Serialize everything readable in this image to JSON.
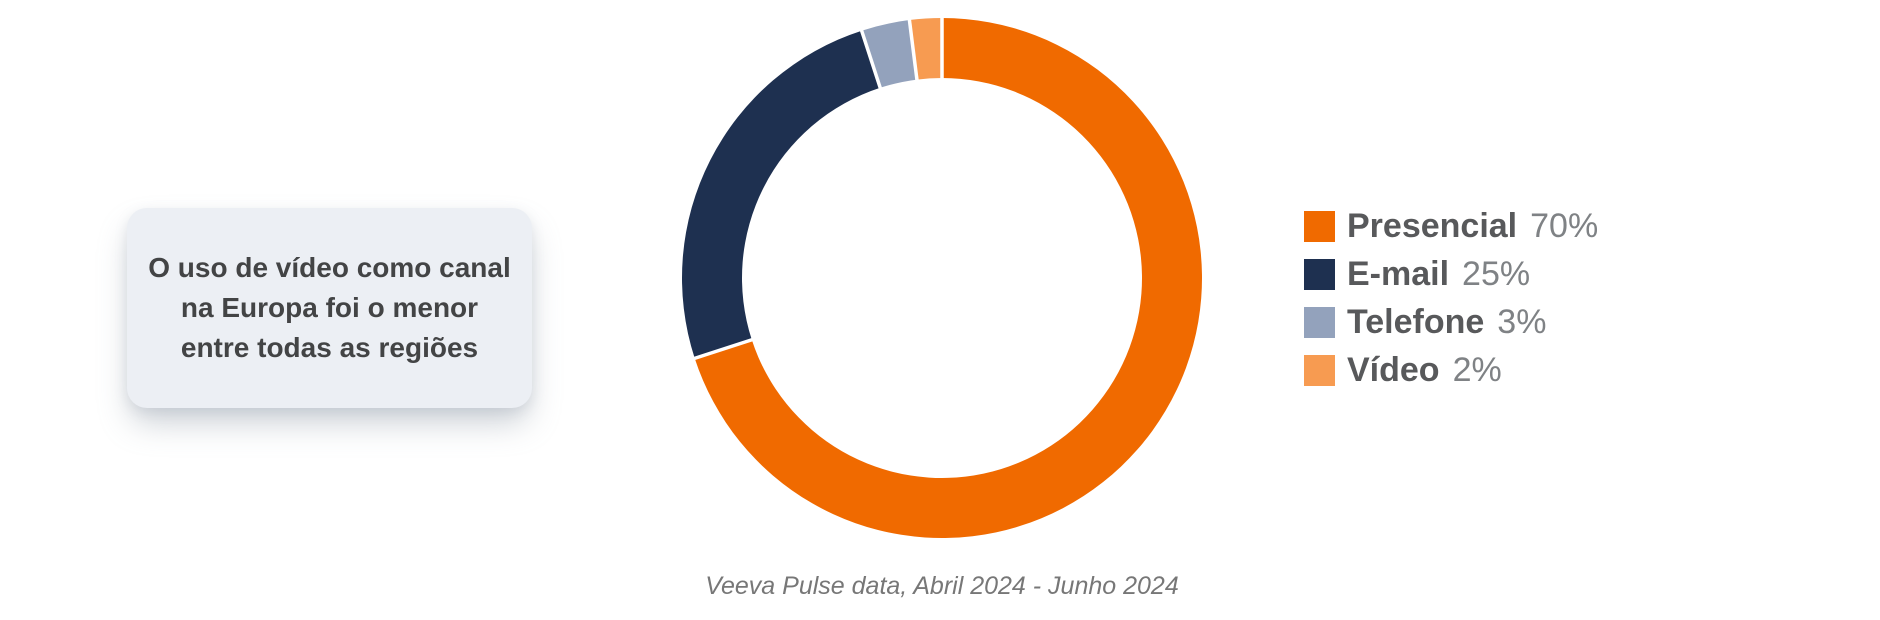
{
  "page": {
    "background": "#FFFFFF"
  },
  "callout": {
    "lines": [
      "O uso de vídeo como canal",
      "na Europa foi o menor",
      "entre todas as regiões"
    ],
    "background": "#ECEFF4",
    "text_color": "#434445"
  },
  "chart_data": {
    "type": "pie",
    "subtype": "donut",
    "direction": "clockwise",
    "start_angle_deg": 0,
    "inner_radius_ratio": 0.77,
    "slice_gap_color": "#FFFFFF",
    "legend_position": "right",
    "categories": [
      "Presencial",
      "E-mail",
      "Telefone",
      "Vídeo"
    ],
    "values": [
      70,
      25,
      3,
      2
    ],
    "slices": [
      {
        "label": "Presencial",
        "value": 70,
        "display_value": "70%",
        "color": "#F06A00"
      },
      {
        "label": "E-mail",
        "value": 25,
        "display_value": "25%",
        "color": "#1E3050"
      },
      {
        "label": "Telefone",
        "value": 3,
        "display_value": "3%",
        "color": "#93A2BC"
      },
      {
        "label": "Vídeo",
        "value": 2,
        "display_value": "2%",
        "color": "#F79B51"
      }
    ],
    "source": "Veeva Pulse data, Abril 2024 - Junho 2024"
  },
  "legend": {
    "label_color": "#58595B",
    "value_color": "#7F8285"
  }
}
